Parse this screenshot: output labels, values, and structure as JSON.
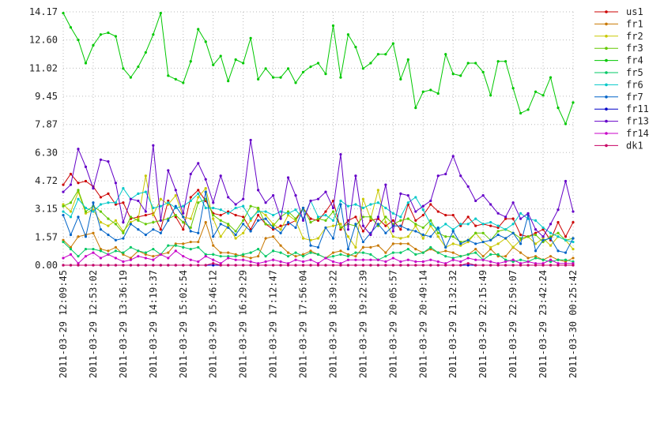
{
  "chart_data": {
    "type": "line",
    "categories": [
      "2011-03-29 12:09:45",
      null,
      null,
      null,
      "2011-03-29 12:53:02",
      null,
      null,
      null,
      "2011-03-29 13:36:19",
      null,
      null,
      null,
      "2011-03-29 14:19:37",
      null,
      null,
      null,
      "2011-03-29 15:02:54",
      null,
      null,
      null,
      "2011-03-29 15:46:12",
      null,
      null,
      null,
      "2011-03-29 16:29:29",
      null,
      null,
      null,
      "2011-03-29 17:12:47",
      null,
      null,
      null,
      "2011-03-29 17:56:04",
      null,
      null,
      null,
      "2011-03-29 18:39:22",
      null,
      null,
      null,
      "2011-03-29 19:22:39",
      null,
      null,
      null,
      "2011-03-29 20:05:57",
      null,
      null,
      null,
      "2011-03-29 20:49:14",
      null,
      null,
      null,
      "2011-03-29 21:32:32",
      null,
      null,
      null,
      "2011-03-29 22:15:49",
      null,
      null,
      null,
      "2011-03-29 22:59:07",
      null,
      null,
      null,
      "2011-03-29 23:42:24",
      null,
      null,
      null,
      "2011-03-30 00:25:42"
    ],
    "ylim": [
      0,
      14.17
    ],
    "yticks": [
      {
        "value": 0,
        "label": "0.00"
      },
      1.57,
      3.15,
      4.72,
      {
        "value": 6.3,
        "label": "6.30"
      },
      7.87,
      9.45,
      11.02,
      {
        "value": 12.6,
        "label": "12.60"
      },
      14.17
    ],
    "grid": true,
    "legend": "right",
    "series": [
      {
        "name": "us1",
        "color": "#cc0000",
        "values": [
          4.5,
          5.1,
          4.6,
          4.7,
          4.4,
          3.8,
          4.0,
          3.4,
          3.5,
          2.6,
          2.7,
          2.8,
          2.9,
          2.0,
          3.6,
          2.7,
          2.0,
          3.8,
          4.2,
          3.6,
          2.9,
          2.8,
          3.0,
          2.8,
          2.7,
          2.0,
          2.8,
          2.3,
          2.0,
          2.2,
          2.3,
          2.5,
          3.2,
          2.6,
          2.5,
          3.0,
          3.6,
          2.0,
          2.5,
          2.7,
          1.9,
          2.5,
          2.6,
          2.2,
          2.5,
          2.0,
          3.4,
          2.5,
          2.8,
          3.4,
          3.0,
          2.8,
          2.8,
          2.2,
          2.7,
          2.2,
          2.3,
          2.2,
          2.1,
          2.6,
          2.6,
          1.7,
          1.6,
          1.8,
          2.0,
          1.4,
          2.4,
          1.6,
          2.4
        ]
      },
      {
        "name": "fr1",
        "color": "#c87800",
        "values": [
          1.4,
          1.0,
          1.6,
          1.7,
          1.8,
          0.9,
          0.8,
          1.0,
          0.6,
          0.4,
          0.8,
          0.6,
          0.5,
          0.6,
          0.7,
          1.2,
          1.2,
          1.3,
          1.3,
          2.4,
          1.1,
          0.7,
          0.7,
          0.6,
          0.5,
          0.4,
          0.5,
          1.5,
          1.6,
          1.1,
          0.7,
          0.5,
          0.6,
          0.8,
          0.6,
          0.4,
          0.7,
          0.8,
          0.6,
          0.5,
          1.0,
          1.0,
          1.1,
          0.7,
          1.2,
          1.2,
          1.2,
          0.9,
          0.7,
          0.9,
          0.7,
          0.8,
          0.7,
          0.5,
          0.6,
          0.9,
          0.5,
          0.9,
          0.5,
          0.5,
          1.0,
          0.7,
          0.4,
          0.5,
          0.3,
          0.5,
          0.3,
          0.2,
          0.4
        ]
      },
      {
        "name": "fr2",
        "color": "#c8c800",
        "values": [
          3.4,
          3.0,
          4.1,
          2.9,
          3.1,
          2.4,
          2.2,
          2.5,
          1.9,
          2.4,
          2.6,
          5.0,
          2.8,
          3.7,
          3.4,
          3.9,
          2.7,
          2.6,
          3.8,
          4.3,
          2.6,
          1.6,
          2.2,
          1.5,
          1.8,
          2.5,
          3.1,
          2.8,
          2.3,
          2.0,
          2.8,
          2.5,
          1.5,
          1.4,
          1.5,
          2.1,
          2.2,
          2.3,
          1.6,
          1.0,
          3.7,
          2.6,
          4.2,
          2.4,
          1.6,
          1.5,
          1.6,
          2.2,
          1.5,
          2.2,
          1.6,
          1.0,
          1.2,
          1.1,
          1.3,
          1.8,
          1.3,
          1.0,
          1.2,
          1.5,
          1.0,
          1.4,
          1.6,
          1.2,
          1.5,
          1.1,
          1.6,
          1.4,
          0.9
        ]
      },
      {
        "name": "fr3",
        "color": "#64c800",
        "values": [
          3.3,
          3.5,
          4.2,
          3.0,
          3.3,
          3.0,
          2.6,
          2.3,
          1.8,
          2.7,
          2.5,
          2.3,
          2.4,
          2.5,
          2.6,
          2.8,
          2.4,
          2.1,
          3.5,
          3.7,
          2.8,
          2.5,
          2.3,
          1.9,
          2.5,
          3.3,
          3.2,
          2.3,
          2.2,
          2.7,
          3.0,
          2.6,
          3.2,
          2.4,
          2.6,
          2.5,
          3.0,
          2.1,
          2.3,
          2.2,
          2.7,
          2.7,
          2.2,
          2.7,
          2.3,
          2.5,
          2.6,
          2.3,
          2.1,
          2.5,
          1.8,
          1.6,
          1.6,
          1.3,
          1.4,
          1.8,
          1.8,
          1.4,
          1.9,
          2.0,
          1.8,
          1.5,
          1.6,
          1.7,
          1.3,
          1.6,
          1.8,
          1.4,
          1.5
        ]
      },
      {
        "name": "fr4",
        "color": "#00c800",
        "values": [
          14.1,
          13.3,
          12.6,
          11.3,
          12.3,
          12.9,
          13.0,
          12.8,
          11.0,
          10.5,
          11.1,
          11.9,
          12.9,
          14.1,
          10.6,
          10.4,
          10.2,
          11.4,
          13.2,
          12.5,
          11.2,
          11.7,
          10.3,
          11.5,
          11.3,
          12.7,
          10.4,
          11.0,
          10.5,
          10.5,
          11.0,
          10.2,
          10.8,
          11.1,
          11.3,
          10.7,
          13.4,
          10.5,
          12.9,
          12.2,
          11.0,
          11.3,
          11.8,
          11.8,
          12.4,
          10.4,
          11.5,
          8.8,
          9.7,
          9.8,
          9.6,
          11.8,
          10.7,
          10.6,
          11.3,
          11.3,
          10.8,
          9.5,
          11.4,
          11.4,
          9.9,
          8.5,
          8.7,
          9.7,
          9.5,
          10.5,
          8.8,
          7.9,
          9.1
        ]
      },
      {
        "name": "fr5",
        "color": "#00c864",
        "values": [
          1.3,
          0.9,
          0.5,
          0.9,
          0.9,
          0.8,
          0.6,
          0.8,
          0.7,
          1.0,
          0.8,
          0.7,
          0.9,
          0.6,
          1.1,
          1.1,
          1.0,
          0.9,
          1.0,
          0.6,
          0.6,
          0.5,
          0.5,
          0.5,
          0.6,
          0.7,
          0.9,
          0.5,
          0.8,
          0.7,
          0.5,
          0.7,
          0.5,
          0.7,
          0.6,
          0.4,
          0.5,
          0.6,
          0.5,
          0.7,
          0.7,
          0.6,
          0.3,
          0.5,
          0.7,
          0.7,
          0.9,
          0.6,
          0.7,
          1.0,
          0.7,
          0.5,
          0.4,
          0.5,
          0.6,
          0.7,
          0.3,
          0.6,
          0.6,
          0.3,
          0.2,
          0.3,
          0.2,
          0.4,
          0.3,
          0.2,
          0.3,
          0.3,
          0.2
        ]
      },
      {
        "name": "fr6",
        "color": "#00c8c8",
        "values": [
          3.0,
          2.7,
          3.7,
          3.2,
          3.0,
          3.4,
          3.5,
          3.5,
          4.3,
          3.7,
          4.0,
          4.1,
          3.2,
          3.3,
          3.5,
          3.2,
          3.3,
          3.6,
          4.0,
          3.2,
          3.2,
          3.1,
          2.9,
          3.2,
          3.3,
          2.6,
          3.0,
          3.0,
          2.8,
          3.0,
          2.9,
          3.1,
          2.6,
          3.6,
          2.7,
          2.8,
          2.5,
          3.6,
          3.3,
          3.4,
          3.2,
          3.4,
          3.5,
          3.2,
          2.9,
          2.7,
          3.5,
          3.8,
          3.1,
          2.3,
          2.0,
          2.3,
          2.0,
          2.3,
          2.3,
          2.6,
          2.3,
          2.4,
          2.2,
          2.0,
          2.3,
          2.9,
          2.6,
          2.5,
          2.1,
          1.8,
          1.6,
          1.4,
          1.3
        ]
      },
      {
        "name": "fr7",
        "color": "#0064c8",
        "values": [
          2.8,
          1.7,
          2.7,
          1.6,
          3.5,
          2.0,
          1.7,
          1.4,
          1.5,
          2.3,
          2.0,
          1.7,
          2.0,
          1.8,
          2.5,
          3.3,
          2.7,
          1.9,
          1.8,
          4.1,
          1.6,
          2.3,
          2.1,
          1.7,
          2.3,
          1.9,
          2.5,
          2.6,
          2.1,
          1.8,
          2.4,
          2.1,
          3.2,
          1.1,
          1.0,
          2.1,
          1.5,
          3.4,
          0.9,
          2.3,
          1.3,
          1.8,
          2.3,
          1.8,
          2.2,
          2.2,
          2.0,
          1.9,
          1.7,
          1.6,
          2.1,
          1.0,
          1.9,
          1.2,
          1.4,
          1.2,
          1.3,
          1.4,
          1.7,
          1.5,
          1.8,
          1.2,
          2.8,
          0.8,
          1.4,
          1.5,
          0.8,
          0.7,
          1.5
        ]
      },
      {
        "name": "fr11",
        "color": "#0000c8",
        "values": [
          0,
          0,
          0,
          0,
          0,
          0,
          0,
          0,
          0,
          0,
          0,
          0,
          0,
          0,
          0,
          0,
          0,
          0,
          0,
          0,
          0,
          0,
          0,
          0,
          0,
          0,
          0,
          0,
          0,
          0,
          0,
          0,
          0,
          0,
          0,
          0,
          0,
          0,
          0,
          0,
          0,
          0,
          0,
          0,
          0,
          0,
          0,
          0,
          0,
          0,
          0,
          0,
          0,
          0,
          0,
          0,
          0,
          0,
          0,
          0,
          0,
          0,
          0,
          0,
          0,
          0,
          0,
          0,
          0
        ]
      },
      {
        "name": "fr13",
        "color": "#6400c8",
        "values": [
          4.1,
          4.5,
          6.5,
          5.5,
          4.3,
          5.9,
          5.8,
          4.6,
          2.4,
          3.7,
          3.6,
          3.0,
          6.7,
          2.5,
          5.3,
          4.2,
          2.9,
          5.1,
          5.7,
          4.8,
          3.5,
          5.0,
          3.8,
          3.4,
          3.7,
          7.0,
          4.2,
          3.5,
          3.9,
          2.6,
          4.9,
          3.9,
          2.5,
          3.6,
          3.7,
          4.1,
          3.2,
          6.2,
          2.0,
          5.0,
          2.2,
          1.7,
          2.7,
          4.5,
          1.9,
          4.0,
          3.9,
          3.0,
          3.3,
          3.6,
          5.0,
          5.1,
          6.1,
          5.0,
          4.4,
          3.6,
          3.9,
          3.4,
          2.9,
          2.7,
          3.5,
          2.6,
          2.9,
          2.0,
          1.6,
          2.3,
          3.1,
          4.7,
          3.0
        ]
      },
      {
        "name": "fr14",
        "color": "#c800c8",
        "values": [
          0.4,
          0.6,
          0.1,
          0.5,
          0.7,
          0.4,
          0.6,
          0.4,
          0.2,
          0.3,
          0.5,
          0.4,
          0.3,
          0.6,
          0.4,
          0.8,
          0.5,
          0.3,
          0.2,
          0.5,
          0.3,
          0.1,
          0.4,
          0.3,
          0.3,
          0.2,
          0.1,
          0.2,
          0.3,
          0.2,
          0.1,
          0.3,
          0.2,
          0.3,
          0.1,
          0.4,
          0.2,
          0.1,
          0.3,
          0.3,
          0.3,
          0.3,
          0.3,
          0.2,
          0.4,
          0.2,
          0.3,
          0.2,
          0.2,
          0.3,
          0.2,
          0.1,
          0.3,
          0.2,
          0.4,
          0.3,
          0.3,
          0.2,
          0.1,
          0.2,
          0.3,
          0.1,
          0.2,
          0.1,
          0.1,
          0.3,
          0.1,
          0.1,
          0.1
        ]
      },
      {
        "name": "dk1",
        "color": "#c80064",
        "values": [
          0,
          0,
          0,
          0,
          0,
          0,
          0,
          0,
          0,
          0,
          0,
          0,
          0,
          0,
          0,
          0,
          0,
          0,
          0,
          0,
          0.1,
          0,
          0,
          0,
          0,
          0,
          0,
          0,
          0,
          0,
          0,
          0,
          0,
          0,
          0,
          0,
          0,
          0,
          0,
          0,
          0,
          0,
          0,
          0,
          0,
          0,
          0,
          0,
          0,
          0,
          0,
          0,
          0,
          0,
          0.1,
          0,
          0,
          0,
          0,
          0,
          0,
          0,
          0,
          0,
          0,
          0,
          0,
          0,
          0
        ]
      }
    ]
  }
}
